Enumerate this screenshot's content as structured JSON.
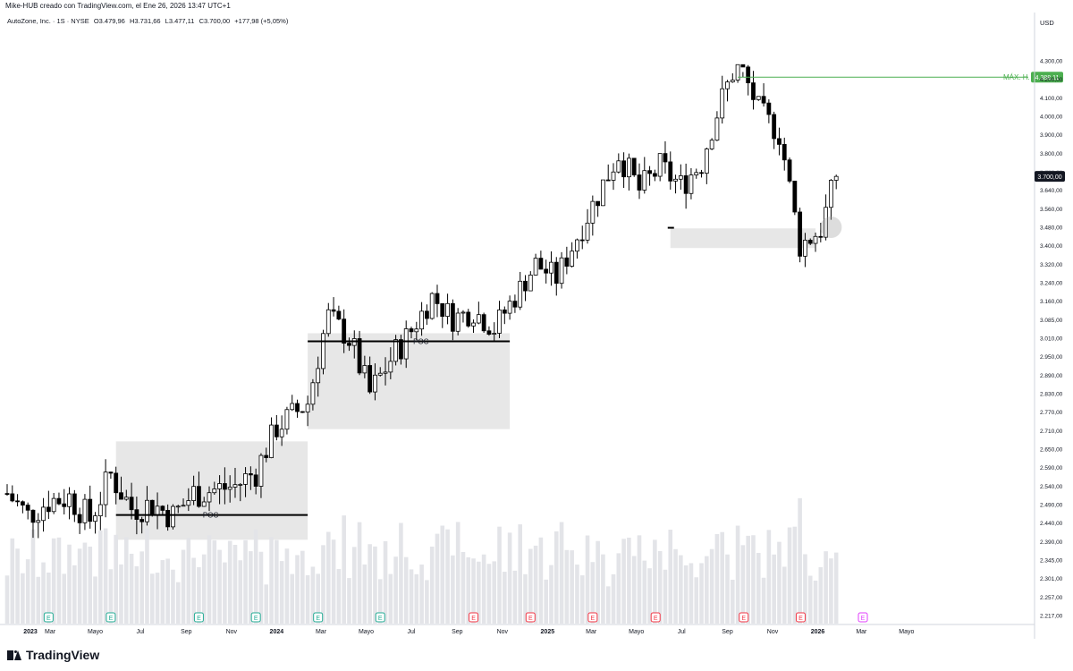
{
  "header": {
    "caption": "Mike-HUB creado con TradingView.com, el Ene 26, 2026 13:47 UTC+1"
  },
  "legend": {
    "symbol": "AutoZone, Inc. · 1S · NYSE",
    "open": "O3.479,96",
    "high": "H3.731,66",
    "low": "L3.477,11",
    "close": "C3.700,00",
    "change": "+177,98 (+5,05%)"
  },
  "footer": {
    "brand": "TradingView"
  },
  "colors": {
    "volume": "#e3e4e8",
    "zone": "#e6e6e6",
    "candle_body_down": "#000000",
    "candle_body_up": "#ffffff",
    "ath_line": "#4caf50",
    "earnings_green": "#22ab94",
    "earnings_red": "#f23645",
    "earnings_future": "#e040fb",
    "price_label_bg": "#131722"
  },
  "chart_data": {
    "type": "candlestick",
    "currency": "USD",
    "timeframe": "1S",
    "x_labels": [
      "2023",
      "Mar",
      "Mayo",
      "Jul",
      "Sep",
      "Nov",
      "2024",
      "Mar",
      "Mayo",
      "Jul",
      "Sep",
      "Nov",
      "2025",
      "Mar",
      "Mayo",
      "Jul",
      "Sep",
      "Nov",
      "2026",
      "Mar",
      "Mayo"
    ],
    "y_ticks": [
      "4.300,00",
      "4.200,00",
      "4.100,00",
      "4.000,00",
      "3.900,00",
      "3.800,00",
      "3.720,00",
      "3.640,00",
      "3.560,00",
      "3.480,00",
      "3.400,00",
      "3.320,00",
      "3.240,00",
      "3.160,00",
      "3.085,00",
      "3.010,00",
      "2.950,00",
      "2.890,00",
      "2.830,00",
      "2.770,00",
      "2.710,00",
      "2.650,00",
      "2.590,00",
      "2.540,00",
      "2.490,00",
      "2.440,00",
      "2.390,00",
      "2.345,00",
      "2.301,00",
      "2.257,00",
      "2.217,00"
    ],
    "last_price_label": "3.700,00",
    "ath": {
      "label": "MÁX. H.",
      "value_label": "4.388,11",
      "value": 4388.11
    },
    "poc_label": "POC",
    "volume_profile_zones": [
      {
        "from_date": "2023-05-29",
        "to_date": "2024-02-12",
        "high": 2675,
        "low": 2395,
        "poc": 2462
      },
      {
        "from_date": "2024-02-12",
        "to_date": "2024-11-11",
        "high": 3030,
        "low": 2715,
        "poc": 3000
      },
      {
        "from_date": "2025-06-16",
        "to_date": "2025-12-29",
        "high": 3475,
        "low": 3390,
        "poc": 3470
      }
    ],
    "earnings_markers": [
      {
        "date": "2023-02-27",
        "type": "E",
        "color": "green"
      },
      {
        "date": "2023-05-22",
        "type": "E",
        "color": "green"
      },
      {
        "date": "2023-09-18",
        "type": "E",
        "color": "green"
      },
      {
        "date": "2023-12-04",
        "type": "E",
        "color": "green"
      },
      {
        "date": "2024-02-26",
        "type": "E",
        "color": "green"
      },
      {
        "date": "2024-05-20",
        "type": "E",
        "color": "green"
      },
      {
        "date": "2024-09-23",
        "type": "E",
        "color": "red"
      },
      {
        "date": "2024-12-09",
        "type": "E",
        "color": "red"
      },
      {
        "date": "2025-03-03",
        "type": "E",
        "color": "red"
      },
      {
        "date": "2025-05-27",
        "type": "E",
        "color": "red"
      },
      {
        "date": "2025-09-23",
        "type": "E",
        "color": "red"
      },
      {
        "date": "2025-12-09",
        "type": "E",
        "color": "red"
      },
      {
        "date": "2026-03-03",
        "type": "E",
        "color": "future"
      }
    ],
    "series_close": [
      {
        "date": "2023-01-02",
        "close": 2520
      },
      {
        "date": "2023-01-30",
        "close": 2460
      },
      {
        "date": "2023-02-27",
        "close": 2500
      },
      {
        "date": "2023-03-27",
        "close": 2510
      },
      {
        "date": "2023-04-24",
        "close": 2450
      },
      {
        "date": "2023-05-22",
        "close": 2570
      },
      {
        "date": "2023-06-19",
        "close": 2480
      },
      {
        "date": "2023-07-17",
        "close": 2490
      },
      {
        "date": "2023-08-14",
        "close": 2460
      },
      {
        "date": "2023-09-11",
        "close": 2520
      },
      {
        "date": "2023-10-09",
        "close": 2530
      },
      {
        "date": "2023-11-06",
        "close": 2540
      },
      {
        "date": "2023-12-04",
        "close": 2580
      },
      {
        "date": "2024-01-01",
        "close": 2720
      },
      {
        "date": "2024-02-12",
        "close": 2800
      },
      {
        "date": "2024-03-11",
        "close": 3100
      },
      {
        "date": "2024-04-08",
        "close": 3010
      },
      {
        "date": "2024-05-06",
        "close": 2830
      },
      {
        "date": "2024-06-03",
        "close": 2940
      },
      {
        "date": "2024-07-01",
        "close": 3040
      },
      {
        "date": "2024-07-29",
        "close": 3180
      },
      {
        "date": "2024-08-26",
        "close": 3090
      },
      {
        "date": "2024-09-23",
        "close": 3120
      },
      {
        "date": "2024-10-21",
        "close": 3050
      },
      {
        "date": "2024-11-18",
        "close": 3180
      },
      {
        "date": "2024-12-16",
        "close": 3320
      },
      {
        "date": "2025-01-13",
        "close": 3260
      },
      {
        "date": "2025-02-10",
        "close": 3440
      },
      {
        "date": "2025-03-10",
        "close": 3620
      },
      {
        "date": "2025-04-07",
        "close": 3800
      },
      {
        "date": "2025-05-05",
        "close": 3640
      },
      {
        "date": "2025-06-02",
        "close": 3740
      },
      {
        "date": "2025-06-30",
        "close": 3660
      },
      {
        "date": "2025-07-28",
        "close": 3760
      },
      {
        "date": "2025-08-25",
        "close": 4100
      },
      {
        "date": "2025-09-15",
        "close": 4300
      },
      {
        "date": "2025-10-13",
        "close": 4040
      },
      {
        "date": "2025-11-10",
        "close": 3900
      },
      {
        "date": "2025-12-08",
        "close": 3400
      },
      {
        "date": "2026-01-05",
        "close": 3470
      },
      {
        "date": "2026-01-26",
        "close": 3700
      }
    ]
  }
}
